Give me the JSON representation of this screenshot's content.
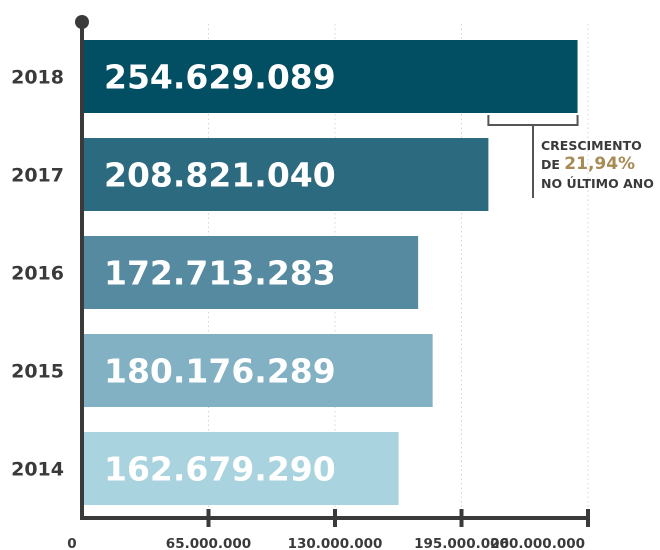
{
  "chart_data": {
    "type": "bar",
    "orientation": "horizontal",
    "categories": [
      "2018",
      "2017",
      "2016",
      "2015",
      "2014"
    ],
    "values": [
      254629089,
      208821040,
      172713283,
      180176289,
      162679290
    ],
    "value_labels": [
      "254.629.089",
      "208.821.040",
      "172.713.283",
      "180.176.289",
      "162.679.290"
    ],
    "bar_colors": [
      "#024e63",
      "#2c6a80",
      "#558aa0",
      "#82b1c3",
      "#a9d3df"
    ],
    "xlim": [
      0,
      260000000
    ],
    "xticks": [
      0,
      65000000,
      130000000,
      195000000,
      260000000
    ],
    "xtick_labels": [
      "0",
      "65.000.000",
      "130.000.000",
      "195.000.000",
      "260.000.000"
    ],
    "grid": "vertical dotted",
    "annotation": {
      "line1": "CRESCIMENTO",
      "prefix": "DE ",
      "highlight": "21,94%",
      "line3": "NO ÚLTIMO ANO",
      "highlight_color": "#a88a55"
    }
  }
}
